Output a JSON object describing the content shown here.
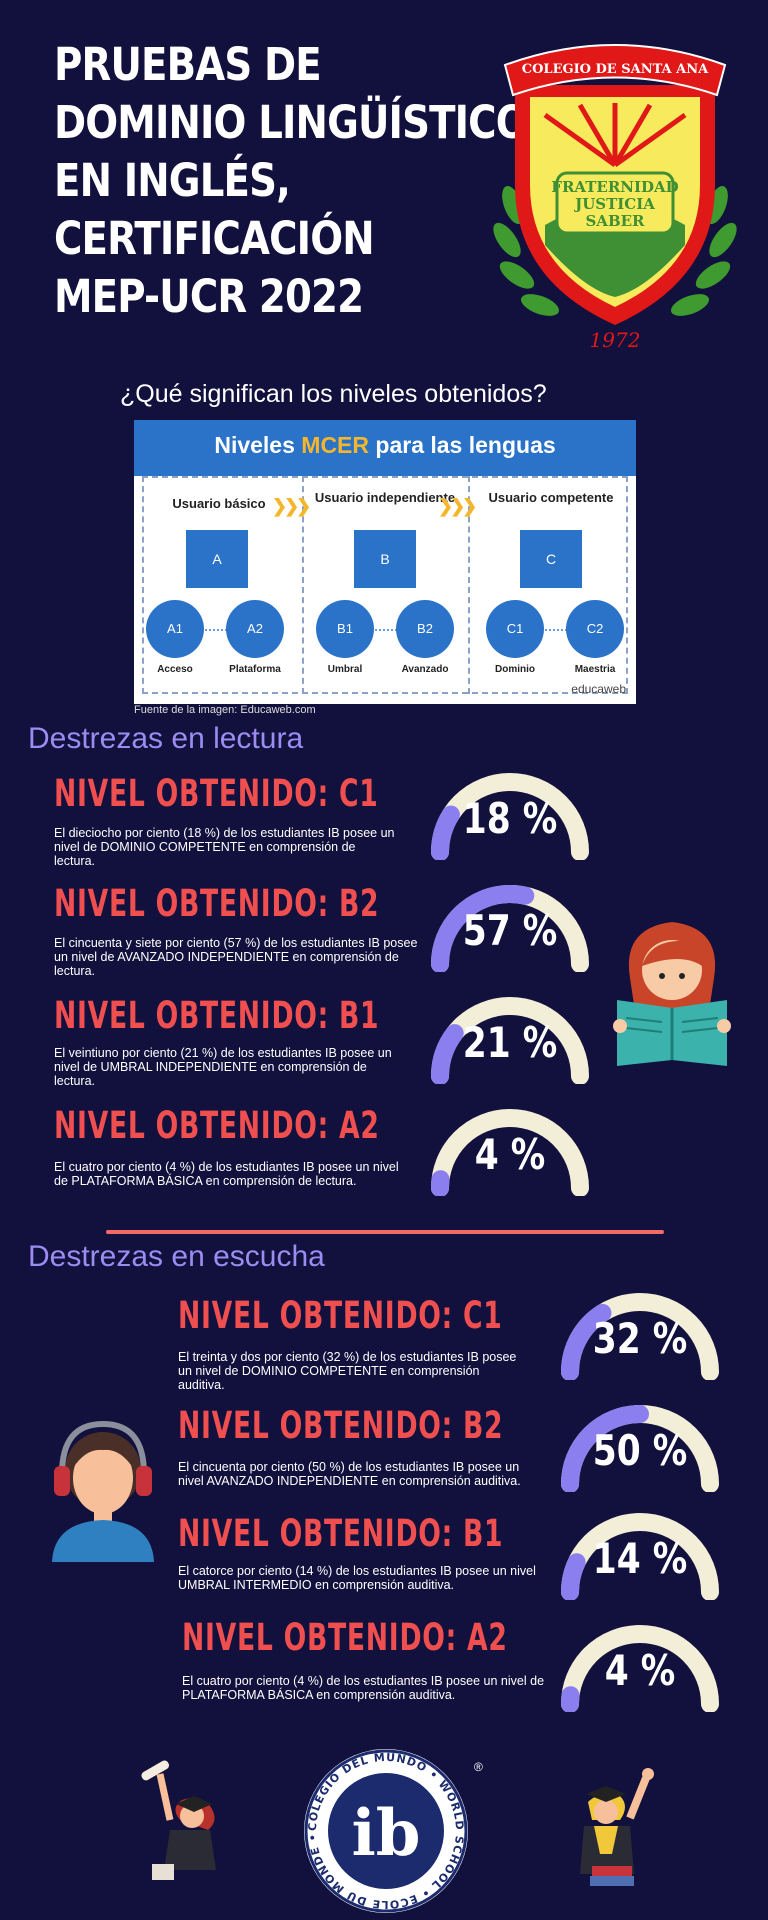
{
  "title_lines": [
    "PRUEBAS DE",
    "DOMINIO LINGÜÍSTICO",
    "EN INGLÉS,",
    "CERTIFICACIÓN",
    "MEP-UCR 2022"
  ],
  "subtitle": "¿Qué significan los niveles obtenidos?",
  "crest": {
    "banner": "COLEGIO DE SANTA ANA",
    "motto": [
      "FRATERNIDAD",
      "JUSTICIA",
      "SABER"
    ],
    "year": "1972"
  },
  "mcer": {
    "title_pre": "Niveles ",
    "title_accent": "MCER",
    "title_post": " para las lenguas",
    "groups": [
      {
        "label": "Usuario básico",
        "letter": "A",
        "levels": [
          {
            "code": "A1",
            "name": "Acceso"
          },
          {
            "code": "A2",
            "name": "Plataforma"
          }
        ]
      },
      {
        "label": "Usuario independiente",
        "letter": "B",
        "levels": [
          {
            "code": "B1",
            "name": "Umbral"
          },
          {
            "code": "B2",
            "name": "Avanzado"
          }
        ]
      },
      {
        "label": "Usuario competente",
        "letter": "C",
        "levels": [
          {
            "code": "C1",
            "name": "Dominio"
          },
          {
            "code": "C2",
            "name": "Maestria"
          }
        ]
      }
    ],
    "brand": "educaweb"
  },
  "source": "Fuente de la imagen: Educaweb.com",
  "reading": {
    "heading": "Destrezas en lectura",
    "items": [
      {
        "level": "NIVEL OBTENIDO: C1",
        "percent": 18,
        "value_label": "18 %",
        "desc": "El dieciocho por ciento (18 %) de los estudiantes IB posee un nivel de DOMINIO COMPETENTE en comprensión de lectura."
      },
      {
        "level": "NIVEL OBTENIDO: B2",
        "percent": 57,
        "value_label": "57 %",
        "desc": "El cincuenta y siete por ciento (57 %) de los estudiantes IB posee un nivel  de AVANZADO INDEPENDIENTE en comprensión de lectura."
      },
      {
        "level": "NIVEL OBTENIDO: B1",
        "percent": 21,
        "value_label": "21 %",
        "desc": "El veintiuno por ciento (21 %) de los estudiantes IB posee un nivel de UMBRAL INDEPENDIENTE en comprensión de lectura."
      },
      {
        "level": "NIVEL OBTENIDO: A2",
        "percent": 4,
        "value_label": "4 %",
        "desc": "El cuatro por ciento (4 %) de los estudiantes IB posee un nivel de PLATAFORMA BÁSICA en comprensión de lectura."
      }
    ]
  },
  "listening": {
    "heading": "Destrezas en escucha",
    "items": [
      {
        "level": "NIVEL OBTENIDO: C1",
        "percent": 32,
        "value_label": "32 %",
        "desc": "El treinta y dos por ciento (32 %) de los estudiantes IB posee un nivel de DOMINIO COMPETENTE en comprensión auditiva."
      },
      {
        "level": "NIVEL OBTENIDO: B2",
        "percent": 50,
        "value_label": "50 %",
        "desc": "El cincuenta por ciento (50 %) de los estudiantes IB posee un nivel AVANZADO INDEPENDIENTE en comprensión auditiva."
      },
      {
        "level": "NIVEL OBTENIDO: B1",
        "percent": 14,
        "value_label": "14 %",
        "desc": "El catorce por ciento (14 %) de los estudiantes IB posee un nivel UMBRAL INTERMEDIO en comprensión auditiva."
      },
      {
        "level": "NIVEL OBTENIDO: A2",
        "percent": 4,
        "value_label": "4 %",
        "desc": "El cuatro por ciento (4 %) de los estudiantes IB posee un nivel de PLATAFORMA BÁSICA en comprensión auditiva."
      }
    ]
  },
  "ib_logo": {
    "ring_text": "COLEGIO DEL MUNDO • WORLD SCHOOL • ÉCOLE DU MONDE •",
    "mark": "ib",
    "registered": "®"
  },
  "colors": {
    "background": "#12103d",
    "accent_red": "#f04f4f",
    "accent_purple": "#9b8cf2",
    "gauge_track": "#f3eed8",
    "gauge_fill": "#8b7ff0"
  }
}
